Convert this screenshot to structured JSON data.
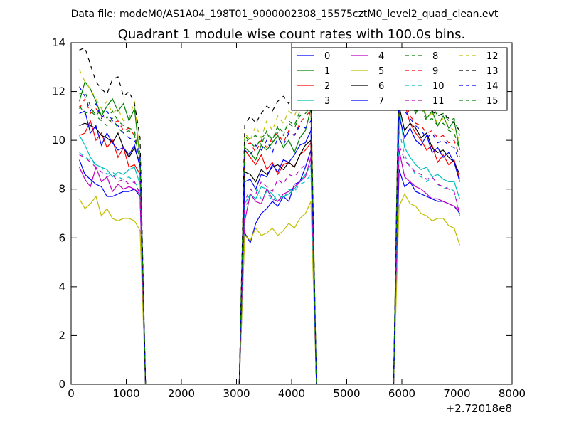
{
  "suptitle": "Data file: modeM0/AS1A04_198T01_9000002308_15575cztM0_level2_quad_clean.evt",
  "chart_data": {
    "type": "line",
    "title": "Quadrant 1 module wise count rates with 100.0s bins.",
    "xlabel": "",
    "ylabel": "",
    "x_offset_label": "+2.72018e8",
    "xlim": [
      0,
      8000
    ],
    "ylim": [
      0,
      14
    ],
    "xticks": [
      0,
      1000,
      2000,
      3000,
      4000,
      5000,
      6000,
      7000,
      8000
    ],
    "yticks": [
      0,
      2,
      4,
      6,
      8,
      10,
      12,
      14
    ],
    "grid": false,
    "legend_position": "top-right",
    "x": [
      150,
      250,
      350,
      450,
      550,
      650,
      750,
      850,
      950,
      1050,
      1150,
      1250,
      1350,
      1450,
      1550,
      1650,
      1750,
      1850,
      1950,
      2050,
      2150,
      2250,
      2350,
      2450,
      2550,
      2650,
      2750,
      2850,
      2950,
      3050,
      3150,
      3250,
      3350,
      3450,
      3550,
      3650,
      3750,
      3850,
      3950,
      4050,
      4150,
      4250,
      4350,
      4450,
      4550,
      4650,
      4750,
      4850,
      4950,
      5050,
      5150,
      5250,
      5350,
      5450,
      5550,
      5650,
      5750,
      5850,
      5950,
      6050,
      6150,
      6250,
      6350,
      6450,
      6550,
      6650,
      6750,
      6850,
      6950,
      7050
    ],
    "series": [
      {
        "name": "0",
        "color": "#0000ff",
        "dash": false,
        "segments": [
          [
            9.2,
            8.6,
            8.4,
            8.2,
            8.1,
            7.7,
            7.7,
            7.8,
            7.9,
            7.9,
            8.0,
            7.7
          ],
          [
            6.2,
            5.8,
            6.6,
            7.0,
            7.2,
            7.5,
            7.3,
            7.7,
            7.5,
            8.2,
            8.3,
            8.9,
            9.6
          ],
          [
            8.8,
            8.1,
            8.3,
            7.9,
            7.8,
            7.7,
            7.6,
            7.5,
            7.5,
            7.4,
            7.3,
            7.0
          ]
        ]
      },
      {
        "name": "1",
        "color": "#008000",
        "dash": false,
        "segments": [
          [
            11.6,
            12.4,
            12.1,
            11.6,
            11.0,
            11.4,
            11.7,
            11.2,
            11.5,
            10.8,
            11.3,
            9.2
          ],
          [
            9.7,
            9.5,
            9.2,
            9.8,
            9.6,
            9.9,
            10.2,
            9.7,
            10.0,
            9.5,
            10.1,
            10.4,
            11.3
          ],
          [
            13.5,
            12.1,
            11.7,
            11.1,
            11.5,
            10.9,
            11.2,
            10.6,
            11.0,
            10.5,
            10.8,
            9.6
          ]
        ]
      },
      {
        "name": "2",
        "color": "#ff0000",
        "dash": false,
        "segments": [
          [
            10.2,
            10.3,
            10.8,
            10.0,
            10.3,
            9.7,
            10.0,
            9.3,
            9.7,
            8.9,
            9.0,
            8.6
          ],
          [
            9.6,
            9.3,
            9.0,
            9.4,
            8.8,
            9.1,
            8.6,
            9.0,
            9.1,
            8.9,
            9.4,
            9.6,
            9.9
          ],
          [
            12.7,
            11.5,
            10.7,
            10.3,
            10.0,
            9.6,
            9.8,
            9.1,
            9.4,
            9.0,
            9.2,
            8.4
          ]
        ]
      },
      {
        "name": "3",
        "color": "#00bfbf",
        "dash": false,
        "segments": [
          [
            10.2,
            9.8,
            9.3,
            9.0,
            8.9,
            8.8,
            8.5,
            8.7,
            8.6,
            8.8,
            8.9,
            8.2
          ],
          [
            7.4,
            7.8,
            7.6,
            8.1,
            8.0,
            7.8,
            7.5,
            7.7,
            7.8,
            8.0,
            8.3,
            8.6,
            9.0
          ],
          [
            11.3,
            9.7,
            9.3,
            9.0,
            8.8,
            8.9,
            8.5,
            8.6,
            8.4,
            8.3,
            8.3,
            7.6
          ]
        ]
      },
      {
        "name": "4",
        "color": "#bf00bf",
        "dash": false,
        "segments": [
          [
            8.9,
            8.4,
            8.1,
            8.9,
            8.3,
            8.5,
            7.9,
            8.2,
            8.0,
            8.1,
            8.0,
            7.8
          ],
          [
            6.7,
            7.8,
            7.5,
            7.4,
            8.0,
            7.6,
            7.5,
            7.8,
            7.9,
            8.1,
            8.3,
            8.5,
            9.3
          ],
          [
            9.6,
            8.5,
            8.3,
            8.1,
            8.0,
            7.8,
            7.6,
            7.6,
            7.5,
            7.4,
            7.3,
            7.1
          ]
        ]
      },
      {
        "name": "5",
        "color": "#bfbf00",
        "dash": false,
        "segments": [
          [
            7.6,
            7.2,
            7.4,
            7.7,
            6.9,
            7.2,
            6.8,
            6.7,
            6.8,
            6.8,
            6.7,
            6.3
          ],
          [
            6.1,
            5.9,
            6.4,
            6.1,
            6.2,
            6.4,
            6.1,
            6.3,
            6.6,
            6.4,
            6.8,
            7.0,
            7.5
          ],
          [
            7.3,
            7.8,
            7.4,
            7.3,
            7.0,
            6.9,
            6.7,
            6.8,
            6.8,
            6.5,
            6.4,
            5.7
          ]
        ]
      },
      {
        "name": "6",
        "color": "#000000",
        "dash": false,
        "segments": [
          [
            10.6,
            10.7,
            10.6,
            10.5,
            10.2,
            10.1,
            9.9,
            10.3,
            9.7,
            9.3,
            9.7,
            9.0
          ],
          [
            8.7,
            8.6,
            8.3,
            8.8,
            8.6,
            8.9,
            9.0,
            8.8,
            9.1,
            8.9,
            9.4,
            9.8,
            10.0
          ],
          [
            11.4,
            10.4,
            10.7,
            10.5,
            10.1,
            10.3,
            9.7,
            9.5,
            9.6,
            9.3,
            9.1,
            8.6
          ]
        ]
      },
      {
        "name": "7",
        "color": "#0000ff",
        "dash": false,
        "segments": [
          [
            11.1,
            11.2,
            10.3,
            10.6,
            9.8,
            10.3,
            9.9,
            9.6,
            9.7,
            9.4,
            9.8,
            8.9
          ],
          [
            8.3,
            8.4,
            8.0,
            8.6,
            8.5,
            9.0,
            8.7,
            9.2,
            9.1,
            9.4,
            9.8,
            9.9,
            10.4
          ],
          [
            11.0,
            10.1,
            10.5,
            10.0,
            9.8,
            10.2,
            9.5,
            9.7,
            9.3,
            9.5,
            9.1,
            8.3
          ]
        ]
      },
      {
        "name": "8",
        "color": "#008000",
        "dash": true,
        "segments": [
          [
            11.9,
            12.0,
            11.4,
            11.0,
            11.3,
            10.9,
            11.2,
            10.8,
            10.6,
            10.5,
            10.4,
            9.0
          ],
          [
            10.2,
            9.9,
            9.7,
            10.1,
            10.3,
            9.9,
            10.5,
            10.2,
            10.8,
            10.6,
            11.2,
            11.5,
            11.8
          ],
          [
            13.2,
            12.6,
            12.2,
            11.6,
            11.8,
            11.3,
            11.4,
            11.0,
            11.1,
            10.8,
            10.9,
            10.2
          ]
        ]
      },
      {
        "name": "9",
        "color": "#ff0000",
        "dash": true,
        "segments": [
          [
            11.3,
            11.7,
            11.1,
            11.3,
            11.0,
            10.9,
            10.7,
            10.8,
            10.4,
            10.5,
            10.2,
            9.1
          ],
          [
            9.8,
            9.9,
            9.5,
            10.0,
            9.7,
            10.1,
            10.3,
            9.9,
            10.4,
            10.2,
            10.7,
            11.0,
            11.2
          ],
          [
            12.5,
            11.6,
            11.0,
            10.7,
            10.6,
            10.3,
            10.4,
            10.1,
            10.2,
            9.9,
            10.0,
            9.3
          ]
        ]
      },
      {
        "name": "10",
        "color": "#00bfbf",
        "dash": true,
        "segments": [
          [
            9.5,
            9.3,
            9.2,
            9.0,
            8.9,
            8.6,
            8.7,
            8.5,
            8.4,
            8.5,
            8.3,
            7.9
          ],
          [
            7.2,
            7.7,
            8.0,
            7.6,
            7.9,
            7.5,
            7.8,
            7.6,
            8.0,
            7.9,
            8.2,
            8.3,
            8.6
          ],
          [
            10.4,
            9.4,
            8.9,
            8.6,
            8.5,
            8.3,
            8.5,
            8.2,
            8.0,
            8.1,
            7.9,
            6.9
          ]
        ]
      },
      {
        "name": "11",
        "color": "#bf00bf",
        "dash": true,
        "segments": [
          [
            9.4,
            9.3,
            9.1,
            8.9,
            8.7,
            8.5,
            8.6,
            8.3,
            8.4,
            8.2,
            8.3,
            7.8
          ],
          [
            7.5,
            8.0,
            7.8,
            8.3,
            8.1,
            7.9,
            8.4,
            8.2,
            8.6,
            8.5,
            8.8,
            9.0,
            9.4
          ],
          [
            9.8,
            9.2,
            8.9,
            8.7,
            8.6,
            8.4,
            8.5,
            8.2,
            8.1,
            8.0,
            7.9,
            7.0
          ]
        ]
      },
      {
        "name": "12",
        "color": "#bfbf00",
        "dash": true,
        "segments": [
          [
            12.9,
            12.4,
            12.1,
            11.7,
            11.3,
            11.6,
            11.1,
            11.3,
            10.8,
            10.9,
            11.6,
            9.3
          ],
          [
            10.3,
            10.0,
            10.6,
            10.1,
            10.8,
            10.4,
            11.0,
            10.7,
            11.2,
            11.0,
            11.5,
            11.8,
            12.0
          ],
          [
            12.9,
            12.2,
            11.8,
            11.4,
            11.5,
            11.0,
            11.1,
            10.7,
            10.9,
            10.6,
            10.4,
            10.0
          ]
        ]
      },
      {
        "name": "13",
        "color": "#000000",
        "dash": true,
        "segments": [
          [
            13.7,
            13.8,
            13.1,
            12.4,
            12.1,
            11.9,
            12.5,
            12.6,
            11.8,
            12.0,
            11.5,
            10.1
          ],
          [
            10.6,
            11.0,
            10.7,
            11.1,
            11.4,
            11.2,
            11.6,
            11.8,
            11.5,
            12.0,
            11.7,
            12.1,
            12.0
          ],
          [
            13.0,
            12.4,
            12.3,
            11.9,
            11.7,
            11.4,
            11.2,
            11.0,
            11.1,
            10.9,
            10.7,
            10.4
          ]
        ]
      },
      {
        "name": "14",
        "color": "#0000ff",
        "dash": true,
        "segments": [
          [
            12.2,
            11.8,
            11.2,
            11.5,
            10.9,
            11.2,
            10.8,
            10.6,
            10.3,
            10.1,
            10.0,
            9.5
          ],
          [
            9.6,
            9.4,
            9.8,
            9.6,
            10.0,
            9.5,
            10.1,
            9.8,
            10.3,
            10.2,
            10.6,
            10.5,
            10.8
          ],
          [
            12.0,
            11.2,
            10.9,
            10.6,
            10.4,
            10.1,
            10.3,
            9.9,
            10.0,
            9.8,
            9.7,
            9.1
          ]
        ]
      },
      {
        "name": "15",
        "color": "#008000",
        "dash": true,
        "segments": [
          [
            11.4,
            11.1,
            11.2,
            11.0,
            10.8,
            10.6,
            10.9,
            10.5,
            10.3,
            10.4,
            10.2,
            9.2
          ],
          [
            9.9,
            10.1,
            10.2,
            9.8,
            10.4,
            10.0,
            10.6,
            10.3,
            10.7,
            10.5,
            11.0,
            11.1,
            11.4
          ],
          [
            12.8,
            12.0,
            11.6,
            11.2,
            11.3,
            10.8,
            10.9,
            10.6,
            10.7,
            10.4,
            10.3,
            9.6
          ]
        ]
      }
    ]
  }
}
